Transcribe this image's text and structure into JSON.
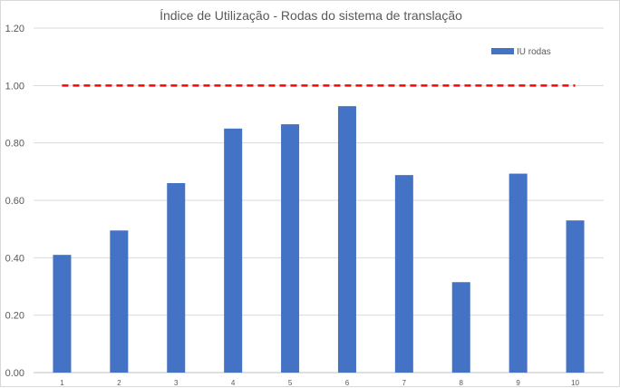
{
  "chart_data": {
    "type": "bar",
    "title": "Índice de Utilização  - Rodas do sistema de translação",
    "categories": [
      "1",
      "2",
      "3",
      "4",
      "5",
      "6",
      "7",
      "8",
      "9",
      "10"
    ],
    "series": [
      {
        "name": "IU rodas",
        "color": "#4472c4",
        "values": [
          0.41,
          0.495,
          0.66,
          0.85,
          0.865,
          0.928,
          0.688,
          0.315,
          0.693,
          0.53
        ]
      }
    ],
    "reference_line": {
      "value": 1.0,
      "color": "#ff0000",
      "style": "dashed"
    },
    "ylim": [
      0,
      1.2
    ],
    "yticks": [
      "0.00",
      "0.20",
      "0.40",
      "0.60",
      "0.80",
      "1.00",
      "1.20"
    ],
    "grid": true,
    "legend_position": "top-right"
  }
}
